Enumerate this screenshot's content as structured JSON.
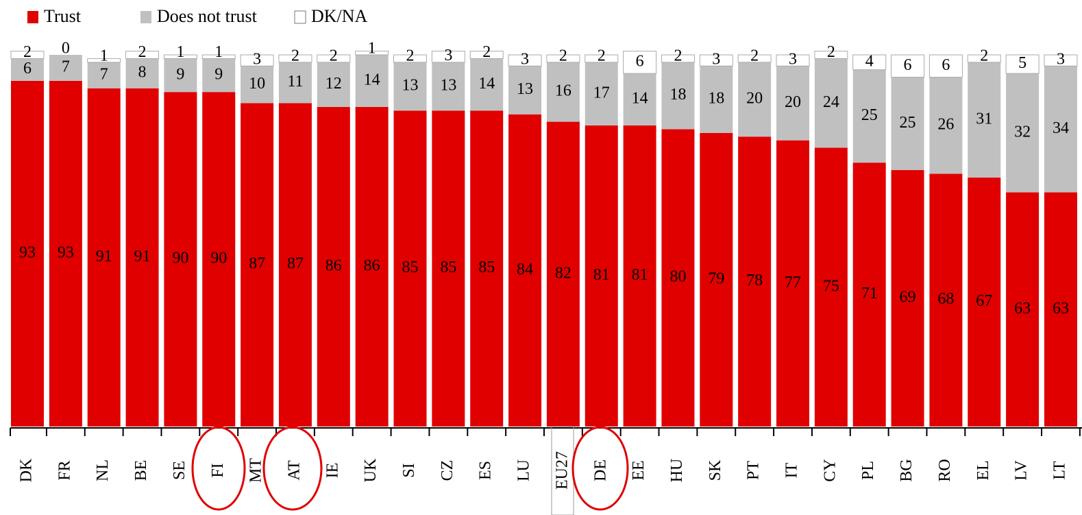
{
  "chart_data": {
    "type": "stacked_bar",
    "categories": [
      "DK",
      "FR",
      "NL",
      "BE",
      "SE",
      "FI",
      "MT",
      "AT",
      "IE",
      "UK",
      "SI",
      "CZ",
      "ES",
      "LU",
      "EU27",
      "DE",
      "EE",
      "HU",
      "SK",
      "PT",
      "IT",
      "CY",
      "PL",
      "BG",
      "RO",
      "EL",
      "LV",
      "LT"
    ],
    "series": [
      {
        "name": "Trust",
        "color": "#e00000",
        "values": [
          93,
          93,
          91,
          91,
          90,
          90,
          87,
          87,
          86,
          86,
          85,
          85,
          85,
          84,
          82,
          81,
          81,
          80,
          79,
          78,
          77,
          75,
          71,
          69,
          68,
          67,
          63,
          63
        ]
      },
      {
        "name": "Does not trust",
        "color": "#c0c0c0",
        "values": [
          6,
          7,
          7,
          8,
          9,
          9,
          10,
          11,
          12,
          14,
          13,
          13,
          14,
          13,
          16,
          17,
          14,
          18,
          18,
          20,
          20,
          24,
          25,
          25,
          26,
          31,
          32,
          34
        ]
      },
      {
        "name": "DK/NA",
        "color": "#ffffff",
        "values": [
          2,
          0,
          1,
          2,
          1,
          1,
          3,
          2,
          2,
          1,
          2,
          3,
          2,
          3,
          2,
          2,
          6,
          2,
          3,
          2,
          3,
          2,
          4,
          6,
          6,
          2,
          5,
          3
        ]
      }
    ]
  }
}
